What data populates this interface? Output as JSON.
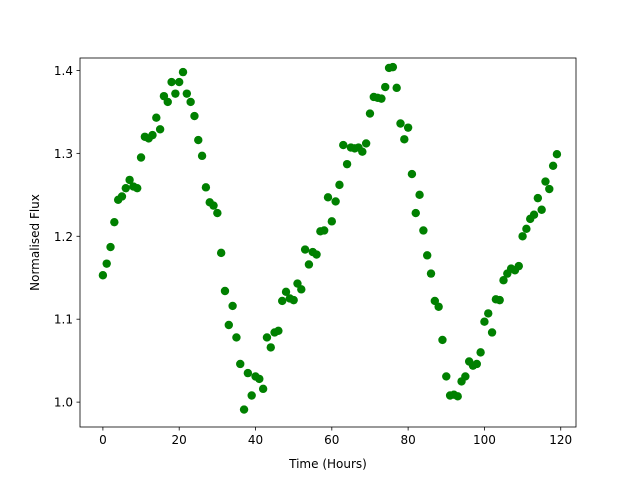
{
  "chart_data": {
    "type": "scatter",
    "title": "",
    "xlabel": "Time (Hours)",
    "ylabel": "Normalised Flux",
    "xlim": [
      -6,
      124
    ],
    "ylim": [
      0.97,
      1.415
    ],
    "x_ticks": [
      0,
      20,
      40,
      60,
      80,
      100,
      120
    ],
    "x_tick_labels": [
      "0",
      "20",
      "40",
      "60",
      "80",
      "100",
      "120"
    ],
    "y_ticks": [
      1.0,
      1.1,
      1.2,
      1.3,
      1.4
    ],
    "y_tick_labels": [
      "1.0",
      "1.1",
      "1.2",
      "1.3",
      "1.4"
    ],
    "grid": false,
    "legend": false,
    "marker_color": "#008000",
    "series": [
      {
        "x": [
          0,
          1,
          2,
          3,
          4,
          5,
          6,
          7,
          8,
          9,
          10,
          11,
          12,
          13,
          14,
          15,
          16,
          17,
          18,
          19,
          20,
          21,
          22,
          23,
          24,
          25,
          26,
          27,
          28,
          29,
          30,
          31,
          32,
          33,
          34,
          35,
          36,
          37,
          38,
          39,
          40,
          41,
          42,
          43,
          44,
          45,
          46,
          47,
          48,
          49,
          50,
          51,
          52,
          53,
          54,
          55,
          56,
          57,
          58,
          59,
          60,
          61,
          62,
          63,
          64,
          65,
          66,
          67,
          68,
          69,
          70,
          71,
          72,
          73,
          74,
          75,
          76,
          77,
          78,
          79,
          80,
          81,
          82,
          83,
          84,
          85,
          86,
          87,
          88,
          89,
          90,
          91,
          92,
          93,
          94,
          95,
          96,
          97,
          98,
          99,
          100,
          101,
          102,
          103,
          104,
          105,
          106,
          107,
          108,
          109,
          110,
          111,
          112,
          113,
          114,
          115,
          116,
          117,
          118,
          119
        ],
        "y": [
          1.153,
          1.167,
          1.187,
          1.217,
          1.244,
          1.248,
          1.258,
          1.268,
          1.26,
          1.258,
          1.295,
          1.32,
          1.318,
          1.322,
          1.343,
          1.329,
          1.369,
          1.362,
          1.386,
          1.372,
          1.386,
          1.398,
          1.372,
          1.362,
          1.345,
          1.316,
          1.297,
          1.259,
          1.241,
          1.237,
          1.228,
          1.18,
          1.134,
          1.093,
          1.116,
          1.078,
          1.046,
          0.991,
          1.035,
          1.008,
          1.031,
          1.028,
          1.016,
          1.078,
          1.066,
          1.084,
          1.086,
          1.122,
          1.133,
          1.125,
          1.123,
          1.143,
          1.136,
          1.184,
          1.166,
          1.181,
          1.178,
          1.206,
          1.207,
          1.247,
          1.218,
          1.242,
          1.262,
          1.31,
          1.287,
          1.307,
          1.306,
          1.307,
          1.302,
          1.312,
          1.348,
          1.368,
          1.367,
          1.366,
          1.38,
          1.403,
          1.404,
          1.379,
          1.336,
          1.317,
          1.331,
          1.275,
          1.228,
          1.25,
          1.207,
          1.177,
          1.155,
          1.122,
          1.115,
          1.075,
          1.031,
          1.008,
          1.009,
          1.007,
          1.025,
          1.031,
          1.049,
          1.044,
          1.046,
          1.06,
          1.097,
          1.107,
          1.084,
          1.124,
          1.123,
          1.147,
          1.155,
          1.161,
          1.159,
          1.164,
          1.2,
          1.209,
          1.221,
          1.226,
          1.246,
          1.232,
          1.266,
          1.257,
          1.285,
          1.299
        ]
      }
    ]
  }
}
